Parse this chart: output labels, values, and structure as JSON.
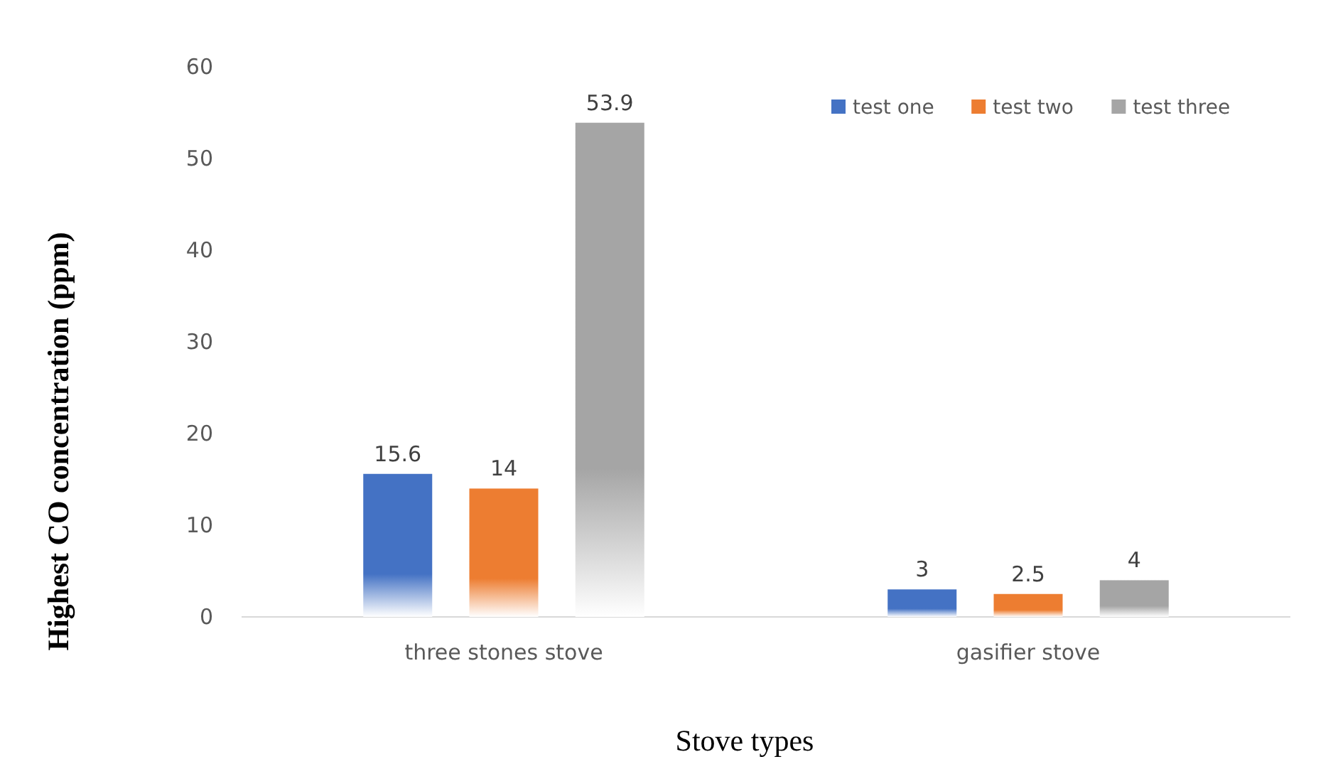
{
  "chart_data": {
    "type": "bar",
    "xlabel": "Stove  types",
    "ylabel": "Highest CO  concentration (ppm)",
    "categories": [
      "three stones stove",
      "gasifier stove"
    ],
    "series": [
      {
        "name": "test one",
        "color": "#4472c4",
        "values": [
          15.6,
          3
        ]
      },
      {
        "name": "test two",
        "color": "#ed7d31",
        "values": [
          14,
          2.5
        ]
      },
      {
        "name": "test three",
        "color": "#a5a5a5",
        "values": [
          53.9,
          4
        ]
      }
    ],
    "ylim": [
      0,
      60
    ],
    "yticks": [
      0,
      10,
      20,
      30,
      40,
      50,
      60
    ],
    "grid": false,
    "legend": "top right",
    "data_labels": true
  }
}
